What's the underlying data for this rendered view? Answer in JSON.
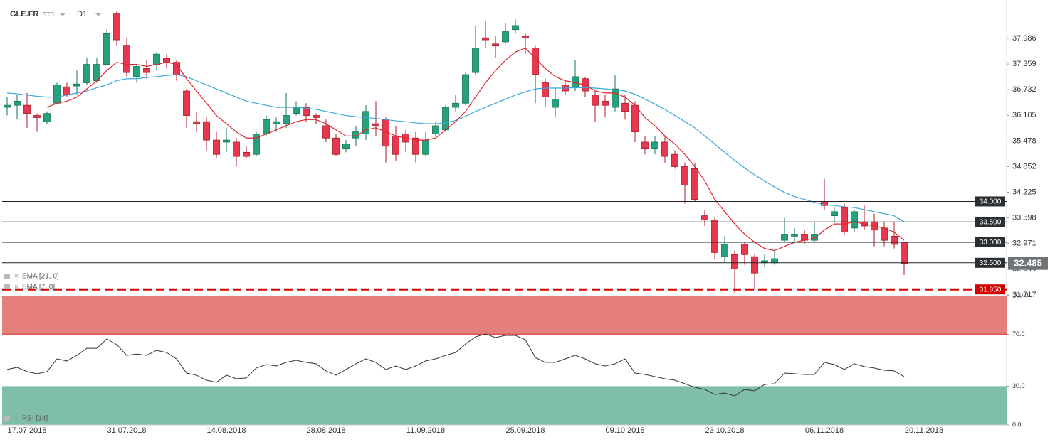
{
  "header": {
    "symbol": "GLE.FR",
    "kind": "STC",
    "timeframe": "D1"
  },
  "chart_data": [
    {
      "type": "candlestick",
      "categories": [
        null,
        null,
        "17.07.2018",
        null,
        null,
        null,
        null,
        null,
        null,
        null,
        null,
        null,
        "31.07.2018",
        null,
        null,
        null,
        null,
        null,
        null,
        null,
        null,
        null,
        "14.08.2018",
        null,
        null,
        null,
        null,
        null,
        null,
        null,
        null,
        null,
        "28.08.2018",
        null,
        null,
        null,
        null,
        null,
        null,
        null,
        null,
        null,
        "11.09.2018",
        null,
        null,
        null,
        null,
        null,
        null,
        null,
        null,
        null,
        "25.09.2018",
        null,
        null,
        null,
        null,
        null,
        null,
        null,
        null,
        null,
        "09.10.2018",
        null,
        null,
        null,
        null,
        null,
        null,
        null,
        null,
        null,
        "23.10.2018",
        null,
        null,
        null,
        null,
        null,
        null,
        null,
        null,
        null,
        "06.11.2018",
        null,
        null,
        null,
        null,
        null,
        null,
        null,
        null,
        null,
        "20.11.2018"
      ],
      "open": [
        36.3,
        36.35,
        36.35,
        36.1,
        35.95,
        36.4,
        36.8,
        36.82,
        36.9,
        36.95,
        37.35,
        38.6,
        37.8,
        37.05,
        37.25,
        37.35,
        37.5,
        37.4,
        36.7,
        35.95,
        35.95,
        35.5,
        35.45,
        35.45,
        35.2,
        35.15,
        35.65,
        35.9,
        35.9,
        36.15,
        36.3,
        36.1,
        35.85,
        35.55,
        35.3,
        35.55,
        35.65,
        35.9,
        36.0,
        35.6,
        35.65,
        35.55,
        35.15,
        35.65,
        35.75,
        36.3,
        36.4,
        37.15,
        38.0,
        37.85,
        37.9,
        38.2,
        38.05,
        37.75,
        36.9,
        36.3,
        36.85,
        36.8,
        37.0,
        36.6,
        36.45,
        36.3,
        36.4,
        36.35,
        35.45,
        35.3,
        35.45,
        35.15,
        34.85,
        34.8,
        33.65,
        33.55,
        32.65,
        32.7,
        32.95,
        32.65,
        32.5,
        32.5,
        33.05,
        33.15,
        33.2,
        33.05,
        34.0,
        33.65,
        33.85,
        33.35,
        33.5,
        33.5,
        33.35,
        33.15,
        33.0,
        null,
        null
      ],
      "high": [
        36.55,
        36.6,
        36.65,
        36.15,
        36.2,
        36.9,
        36.9,
        37.2,
        37.5,
        37.5,
        38.2,
        38.65,
        38.0,
        37.35,
        37.45,
        37.65,
        37.6,
        37.45,
        36.75,
        36.2,
        36.05,
        35.7,
        35.8,
        35.55,
        35.35,
        35.7,
        36.1,
        36.05,
        36.65,
        36.45,
        36.4,
        36.15,
        36.0,
        35.65,
        35.5,
        35.85,
        36.35,
        36.45,
        36.05,
        35.85,
        35.75,
        35.7,
        35.7,
        35.95,
        36.35,
        36.6,
        37.15,
        38.3,
        38.4,
        38.05,
        38.35,
        38.45,
        38.1,
        37.8,
        37.0,
        36.8,
        36.95,
        37.45,
        37.05,
        36.7,
        36.6,
        37.1,
        36.6,
        36.45,
        35.6,
        35.6,
        35.6,
        35.25,
        34.95,
        34.95,
        33.8,
        33.6,
        33.15,
        32.8,
        33.0,
        32.7,
        32.7,
        32.8,
        33.6,
        33.35,
        33.3,
        33.5,
        34.55,
        33.85,
        33.95,
        33.8,
        33.9,
        33.7,
        33.5,
        33.5,
        33.0,
        null,
        null
      ],
      "low": [
        36.1,
        36.0,
        35.8,
        35.7,
        35.9,
        36.4,
        36.55,
        36.6,
        36.85,
        36.9,
        37.35,
        37.8,
        37.05,
        36.9,
        37.0,
        37.2,
        37.25,
        36.95,
        35.8,
        35.7,
        35.25,
        35.05,
        35.2,
        34.85,
        35.05,
        35.1,
        35.6,
        35.7,
        35.8,
        36.1,
        35.95,
        35.9,
        35.45,
        35.1,
        35.2,
        35.35,
        35.5,
        35.6,
        34.95,
        35.0,
        35.2,
        34.95,
        35.1,
        35.6,
        35.7,
        36.2,
        36.35,
        37.1,
        37.75,
        37.5,
        37.85,
        38.1,
        37.6,
        36.4,
        36.3,
        36.05,
        36.6,
        36.7,
        36.55,
        35.95,
        36.05,
        36.2,
        36.0,
        35.45,
        35.15,
        35.15,
        34.95,
        34.8,
        33.95,
        34.0,
        33.4,
        32.6,
        32.5,
        31.75,
        32.45,
        31.85,
        32.4,
        32.45,
        33.0,
        33.0,
        32.95,
        33.0,
        33.8,
        33.5,
        33.2,
        33.25,
        33.3,
        32.9,
        32.9,
        32.85,
        32.2,
        null,
        null
      ],
      "close": [
        36.35,
        36.45,
        36.15,
        36.05,
        36.15,
        36.85,
        36.6,
        36.87,
        37.35,
        37.35,
        38.1,
        37.95,
        37.15,
        37.3,
        37.15,
        37.6,
        37.4,
        37.1,
        36.1,
        35.9,
        35.5,
        35.15,
        35.5,
        35.1,
        35.1,
        35.65,
        36.0,
        35.95,
        36.1,
        36.3,
        36.1,
        36.05,
        35.55,
        35.15,
        35.4,
        35.7,
        36.2,
        35.85,
        35.35,
        35.15,
        35.45,
        35.15,
        35.5,
        35.85,
        36.3,
        36.4,
        37.1,
        37.75,
        37.95,
        37.8,
        38.15,
        38.3,
        38.0,
        37.1,
        36.55,
        36.5,
        36.7,
        37.05,
        36.7,
        36.35,
        36.35,
        36.75,
        36.2,
        35.7,
        35.3,
        35.45,
        35.1,
        34.85,
        34.4,
        34.05,
        33.55,
        32.75,
        32.95,
        32.35,
        32.7,
        32.25,
        32.55,
        32.6,
        33.2,
        33.2,
        33.05,
        33.2,
        33.9,
        33.75,
        33.25,
        33.75,
        33.4,
        33.3,
        33.05,
        32.95,
        32.485,
        null,
        null
      ],
      "up_color": "#26a17b",
      "down_color": "#e8384f",
      "ylim": [
        31.68,
        38.75
      ],
      "yticks": [
        37.986,
        37.359,
        36.732,
        36.105,
        35.478,
        34.852,
        34.225,
        33.598,
        32.971,
        32.344,
        31.717
      ],
      "series": [
        {
          "name": "EMA [21, 0]",
          "color": "#3aa8db",
          "values": [
            36.65,
            36.63,
            36.6,
            36.57,
            36.55,
            36.55,
            36.6,
            36.65,
            36.7,
            36.78,
            36.85,
            36.95,
            37.0,
            37.0,
            37.03,
            37.05,
            37.08,
            37.1,
            37.05,
            36.95,
            36.85,
            36.75,
            36.65,
            36.55,
            36.45,
            36.4,
            36.35,
            36.3,
            36.3,
            36.3,
            36.28,
            36.25,
            36.2,
            36.15,
            36.1,
            36.07,
            36.05,
            36.03,
            36.0,
            35.97,
            35.95,
            35.92,
            35.9,
            35.9,
            35.92,
            35.98,
            36.08,
            36.2,
            36.3,
            36.4,
            36.5,
            36.6,
            36.68,
            36.75,
            36.77,
            36.77,
            36.77,
            36.78,
            36.78,
            36.77,
            36.75,
            36.73,
            36.7,
            36.62,
            36.5,
            36.38,
            36.25,
            36.1,
            35.95,
            35.8,
            35.6,
            35.4,
            35.2,
            35.0,
            34.82,
            34.65,
            34.5,
            34.35,
            34.22,
            34.12,
            34.05,
            33.98,
            33.92,
            33.9,
            33.87,
            33.85,
            33.8,
            33.75,
            33.7,
            33.65,
            33.5,
            null,
            null
          ]
        },
        {
          "name": "EMA [7, 0]",
          "color": "#e0262f",
          "values": [
            null,
            null,
            null,
            null,
            36.3,
            36.4,
            36.45,
            36.55,
            36.75,
            36.95,
            37.2,
            37.4,
            37.35,
            37.35,
            37.3,
            37.35,
            37.4,
            37.35,
            37.0,
            36.7,
            36.4,
            36.1,
            35.9,
            35.7,
            35.55,
            35.55,
            35.65,
            35.75,
            35.85,
            35.95,
            36.0,
            36.0,
            35.9,
            35.75,
            35.6,
            35.6,
            35.75,
            35.8,
            35.7,
            35.6,
            35.55,
            35.5,
            35.5,
            35.55,
            35.75,
            35.95,
            36.2,
            36.55,
            36.9,
            37.2,
            37.45,
            37.65,
            37.75,
            37.5,
            37.25,
            37.05,
            36.95,
            36.9,
            36.85,
            36.7,
            36.65,
            36.65,
            36.55,
            36.35,
            36.05,
            35.85,
            35.6,
            35.4,
            35.15,
            34.85,
            34.5,
            34.05,
            33.75,
            33.45,
            33.2,
            33.0,
            32.85,
            32.8,
            32.9,
            33.0,
            33.05,
            33.1,
            33.3,
            33.45,
            33.45,
            33.5,
            33.45,
            33.4,
            33.35,
            33.25,
            33.05,
            null,
            null
          ]
        }
      ],
      "levels": [
        {
          "value": 34,
          "label": "34.000",
          "color": "#222222",
          "style": "solid"
        },
        {
          "value": 33.5,
          "label": "33.500",
          "color": "#222222",
          "style": "solid"
        },
        {
          "value": 33,
          "label": "33.000",
          "color": "#222222",
          "style": "solid"
        },
        {
          "value": 32.5,
          "label": "32.500",
          "color": "#222222",
          "style": "solid"
        },
        {
          "value": 31.85,
          "label": "31.850",
          "color": "#d40000",
          "style": "dashed"
        }
      ],
      "last_price": 32.485
    },
    {
      "type": "line",
      "title": "RSI [14]",
      "color": "#333333",
      "values": [
        42.9,
        44.5,
        41.2,
        39.6,
        41.2,
        51.1,
        49.5,
        53.8,
        59.3,
        59.3,
        66.5,
        62.1,
        53.8,
        54.9,
        53.8,
        57.7,
        56.0,
        51.1,
        40.1,
        38.5,
        34.6,
        33.0,
        38.5,
        35.7,
        36.3,
        44.0,
        46.7,
        45.6,
        48.4,
        50.0,
        48.4,
        47.3,
        41.8,
        38.5,
        42.9,
        47.3,
        51.1,
        48.4,
        42.9,
        45.6,
        42.9,
        45.6,
        49.5,
        51.1,
        53.8,
        56.0,
        62.6,
        68.1,
        70.3,
        67.6,
        69.2,
        69.2,
        65.9,
        52.2,
        48.4,
        48.4,
        51.1,
        53.8,
        51.1,
        47.3,
        45.6,
        47.3,
        51.1,
        40.1,
        39.0,
        37.4,
        35.7,
        34.6,
        31.9,
        29.1,
        27.5,
        23.6,
        24.7,
        22.5,
        27.5,
        26.4,
        31.3,
        31.9,
        40.1,
        39.6,
        39.0,
        39.0,
        48.4,
        46.7,
        42.9,
        47.3,
        45.1,
        44.0,
        42.3,
        41.8,
        37.4,
        null,
        null
      ],
      "ylim": [
        0,
        100
      ],
      "yticks": [
        {
          "value": 100,
          "label": "100.0"
        },
        {
          "value": 70,
          "label": "70.0"
        },
        {
          "value": 30,
          "label": "30.0"
        },
        {
          "value": 0,
          "label": "0.0"
        }
      ],
      "bands": [
        {
          "from": 70,
          "to": 100,
          "color": "#e47f7c"
        },
        {
          "from": 0,
          "to": 30,
          "color": "#7fbfa7"
        }
      ]
    }
  ]
}
